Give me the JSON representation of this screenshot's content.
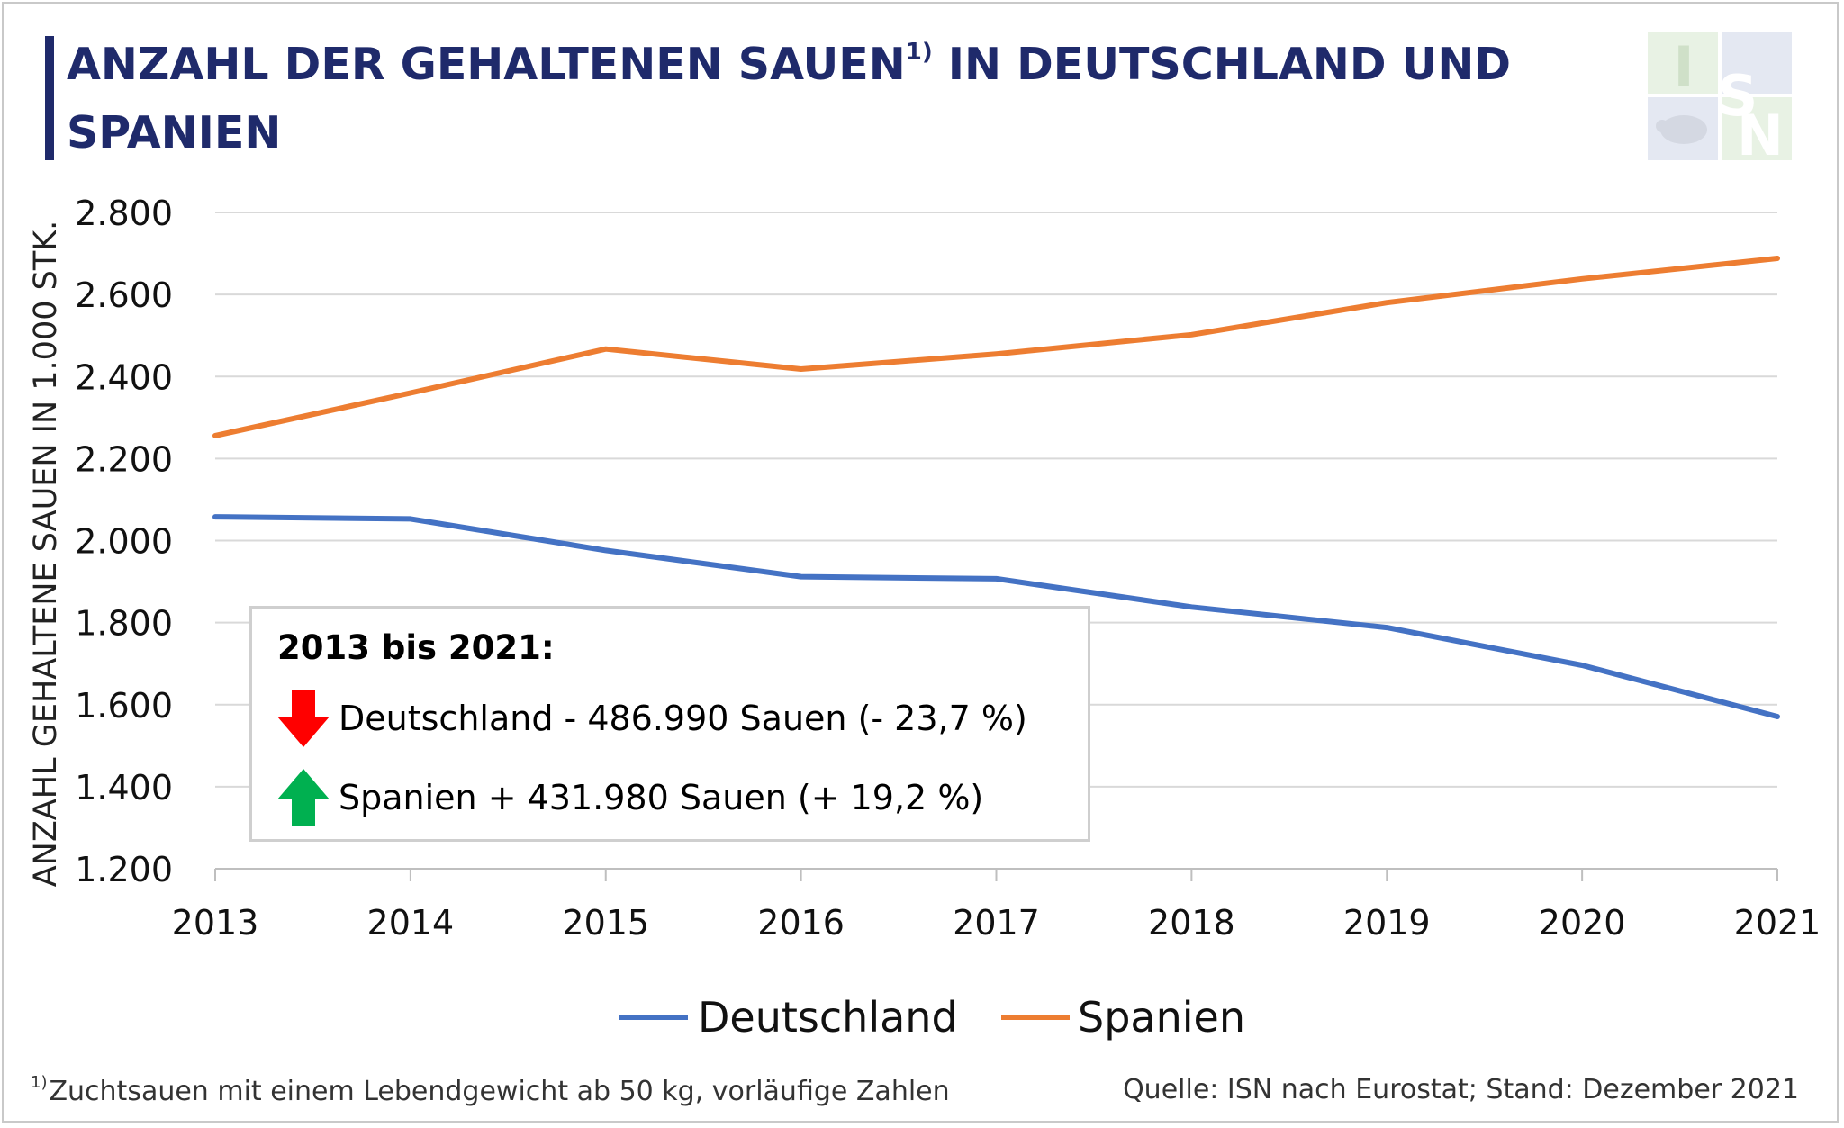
{
  "header": {
    "title_part1": "ANZAHL DER GEHALTENEN SAUEN",
    "title_superscript": "1)",
    "title_part2": " IN DEUTSCHLAND UND SPANIEN",
    "logo_text": "ISN"
  },
  "info_box": {
    "heading": "2013 bis 2021:",
    "items": [
      {
        "text": "Deutschland - 486.990 Sauen (- 23,7 %)",
        "arrow": "arrow-down-icon",
        "color": "#ff0000"
      },
      {
        "text": "Spanien + 431.980 Sauen (+ 19,2 %)",
        "arrow": "arrow-up-icon",
        "color": "#00b050"
      }
    ]
  },
  "footer": {
    "note_marker": "1)",
    "note": "Zuchtsauen mit einem Lebendgewicht ab 50 kg, vorläufige Zahlen",
    "source": "Quelle: ISN nach Eurostat; Stand: Dezember 2021"
  },
  "chart_data": {
    "type": "line",
    "title": "ANZAHL DER GEHALTENEN SAUEN1) IN DEUTSCHLAND UND SPANIEN",
    "xlabel": "",
    "ylabel": "ANZAHL GEHALTENE SAUEN IN 1.000 STK.",
    "ylim": [
      1200,
      2800
    ],
    "yticks": [
      "1.200",
      "1.400",
      "1.600",
      "1.800",
      "2.000",
      "2.200",
      "2.400",
      "2.600",
      "2.800"
    ],
    "ytick_values": [
      1200,
      1400,
      1600,
      1800,
      2000,
      2200,
      2400,
      2600,
      2800
    ],
    "x": [
      "2013",
      "2014",
      "2015",
      "2016",
      "2017",
      "2018",
      "2019",
      "2020",
      "2021"
    ],
    "grid": true,
    "legend_position": "bottom",
    "series": [
      {
        "name": "Deutschland",
        "color": "#4472c4",
        "values": [
          2058,
          2053,
          1976,
          1912,
          1907,
          1838,
          1788,
          1696,
          1571
        ]
      },
      {
        "name": "Spanien",
        "color": "#ed7d31",
        "values": [
          2256,
          2360,
          2467,
          2418,
          2455,
          2502,
          2580,
          2638,
          2688
        ]
      }
    ]
  }
}
